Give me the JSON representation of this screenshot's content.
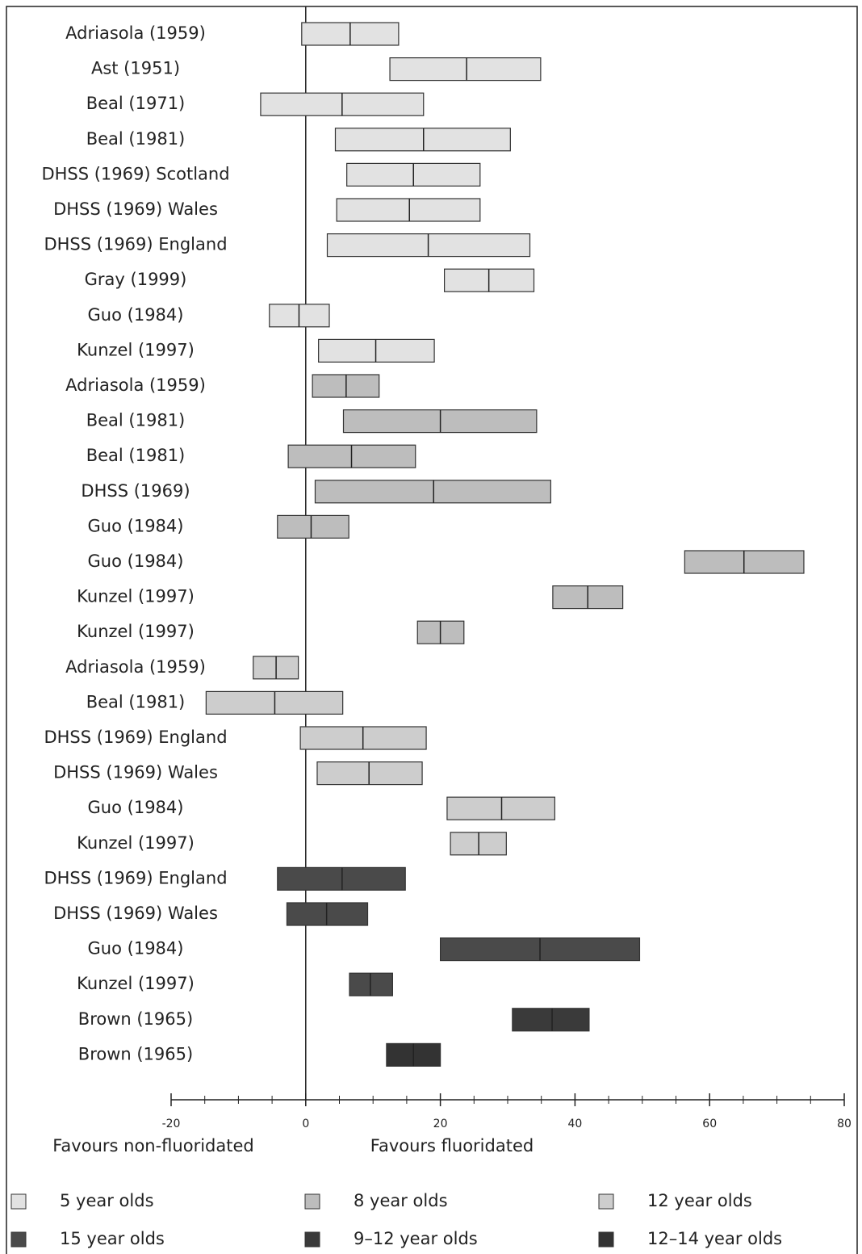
{
  "chart_data": {
    "type": "range",
    "xlabel_left": "Favours non-fluoridated",
    "xlabel_right": "Favours fluoridated",
    "xlim": [
      -20,
      80
    ],
    "xticks": [
      -20,
      0,
      20,
      40,
      60,
      80
    ],
    "xminorticks": [
      -15,
      -10,
      -5,
      5,
      10,
      15,
      25,
      30,
      35,
      45,
      50,
      55,
      65,
      70,
      75
    ],
    "series": [
      {
        "name": "5 year olds",
        "color": "#e2e2e2",
        "labels": [
          "Adriasola (1959)",
          "Ast (1951)",
          "Beal (1971)",
          "Beal (1981)",
          "DHSS (1969) Scotland",
          "DHSS (1969) Wales",
          "DHSS (1969) England",
          "Gray (1999)",
          "Guo (1984)",
          "Kunzel (1997)"
        ],
        "low": [
          -0.6,
          12.5,
          -6.7,
          4.4,
          6.1,
          4.6,
          3.2,
          20.6,
          -5.4,
          1.9
        ],
        "mid": [
          6.6,
          23.9,
          5.4,
          17.5,
          16.0,
          15.4,
          18.2,
          27.2,
          -1.0,
          10.4
        ],
        "high": [
          13.8,
          34.9,
          17.5,
          30.4,
          25.9,
          25.9,
          33.3,
          33.9,
          3.5,
          19.1
        ]
      },
      {
        "name": "8 year olds",
        "color": "#bdbdbd",
        "labels": [
          "Adriasola (1959)",
          "Beal (1981)",
          "Beal (1981)",
          "DHSS (1969)",
          "Guo (1984)",
          "Guo (1984)",
          "Kunzel (1997)",
          "Kunzel (1997)"
        ],
        "low": [
          1.0,
          5.6,
          -2.6,
          1.4,
          -4.2,
          56.3,
          36.7,
          16.6
        ],
        "mid": [
          6.0,
          20.0,
          6.8,
          19.0,
          0.8,
          65.1,
          41.9,
          20.0
        ],
        "high": [
          10.9,
          34.3,
          16.3,
          36.4,
          6.4,
          74.0,
          47.1,
          23.5
        ]
      },
      {
        "name": "12 year olds",
        "color": "#cdcdcd",
        "labels": [
          "Adriasola (1959)",
          "Beal (1981)",
          "DHSS (1969) England",
          "DHSS (1969) Wales",
          "Guo (1984)",
          "Kunzel (1997)"
        ],
        "low": [
          -7.8,
          -14.8,
          -0.8,
          1.7,
          21.0,
          21.5
        ],
        "mid": [
          -4.4,
          -4.6,
          8.5,
          9.4,
          29.1,
          25.7
        ],
        "high": [
          -1.1,
          5.5,
          17.9,
          17.3,
          37.0,
          29.8
        ]
      },
      {
        "name": "15 year olds",
        "color": "#4a4a4a",
        "labels": [
          "DHSS (1969) England",
          "DHSS (1969) Wales",
          "Guo (1984)",
          "Kunzel (1997)"
        ],
        "low": [
          -4.2,
          -2.8,
          20.0,
          6.5
        ],
        "mid": [
          5.4,
          3.1,
          34.8,
          9.6
        ],
        "high": [
          14.8,
          9.2,
          49.6,
          12.9
        ]
      },
      {
        "name": "9–12 year olds",
        "color": "#3a3a3a",
        "labels": [
          "Brown (1965)"
        ],
        "low": [
          30.7
        ],
        "mid": [
          36.6
        ],
        "high": [
          42.1
        ]
      },
      {
        "name": "12–14 year olds",
        "color": "#333333",
        "labels": [
          "Brown (1965)"
        ],
        "low": [
          12.0
        ],
        "mid": [
          16.0
        ],
        "high": [
          20.0
        ]
      }
    ]
  }
}
